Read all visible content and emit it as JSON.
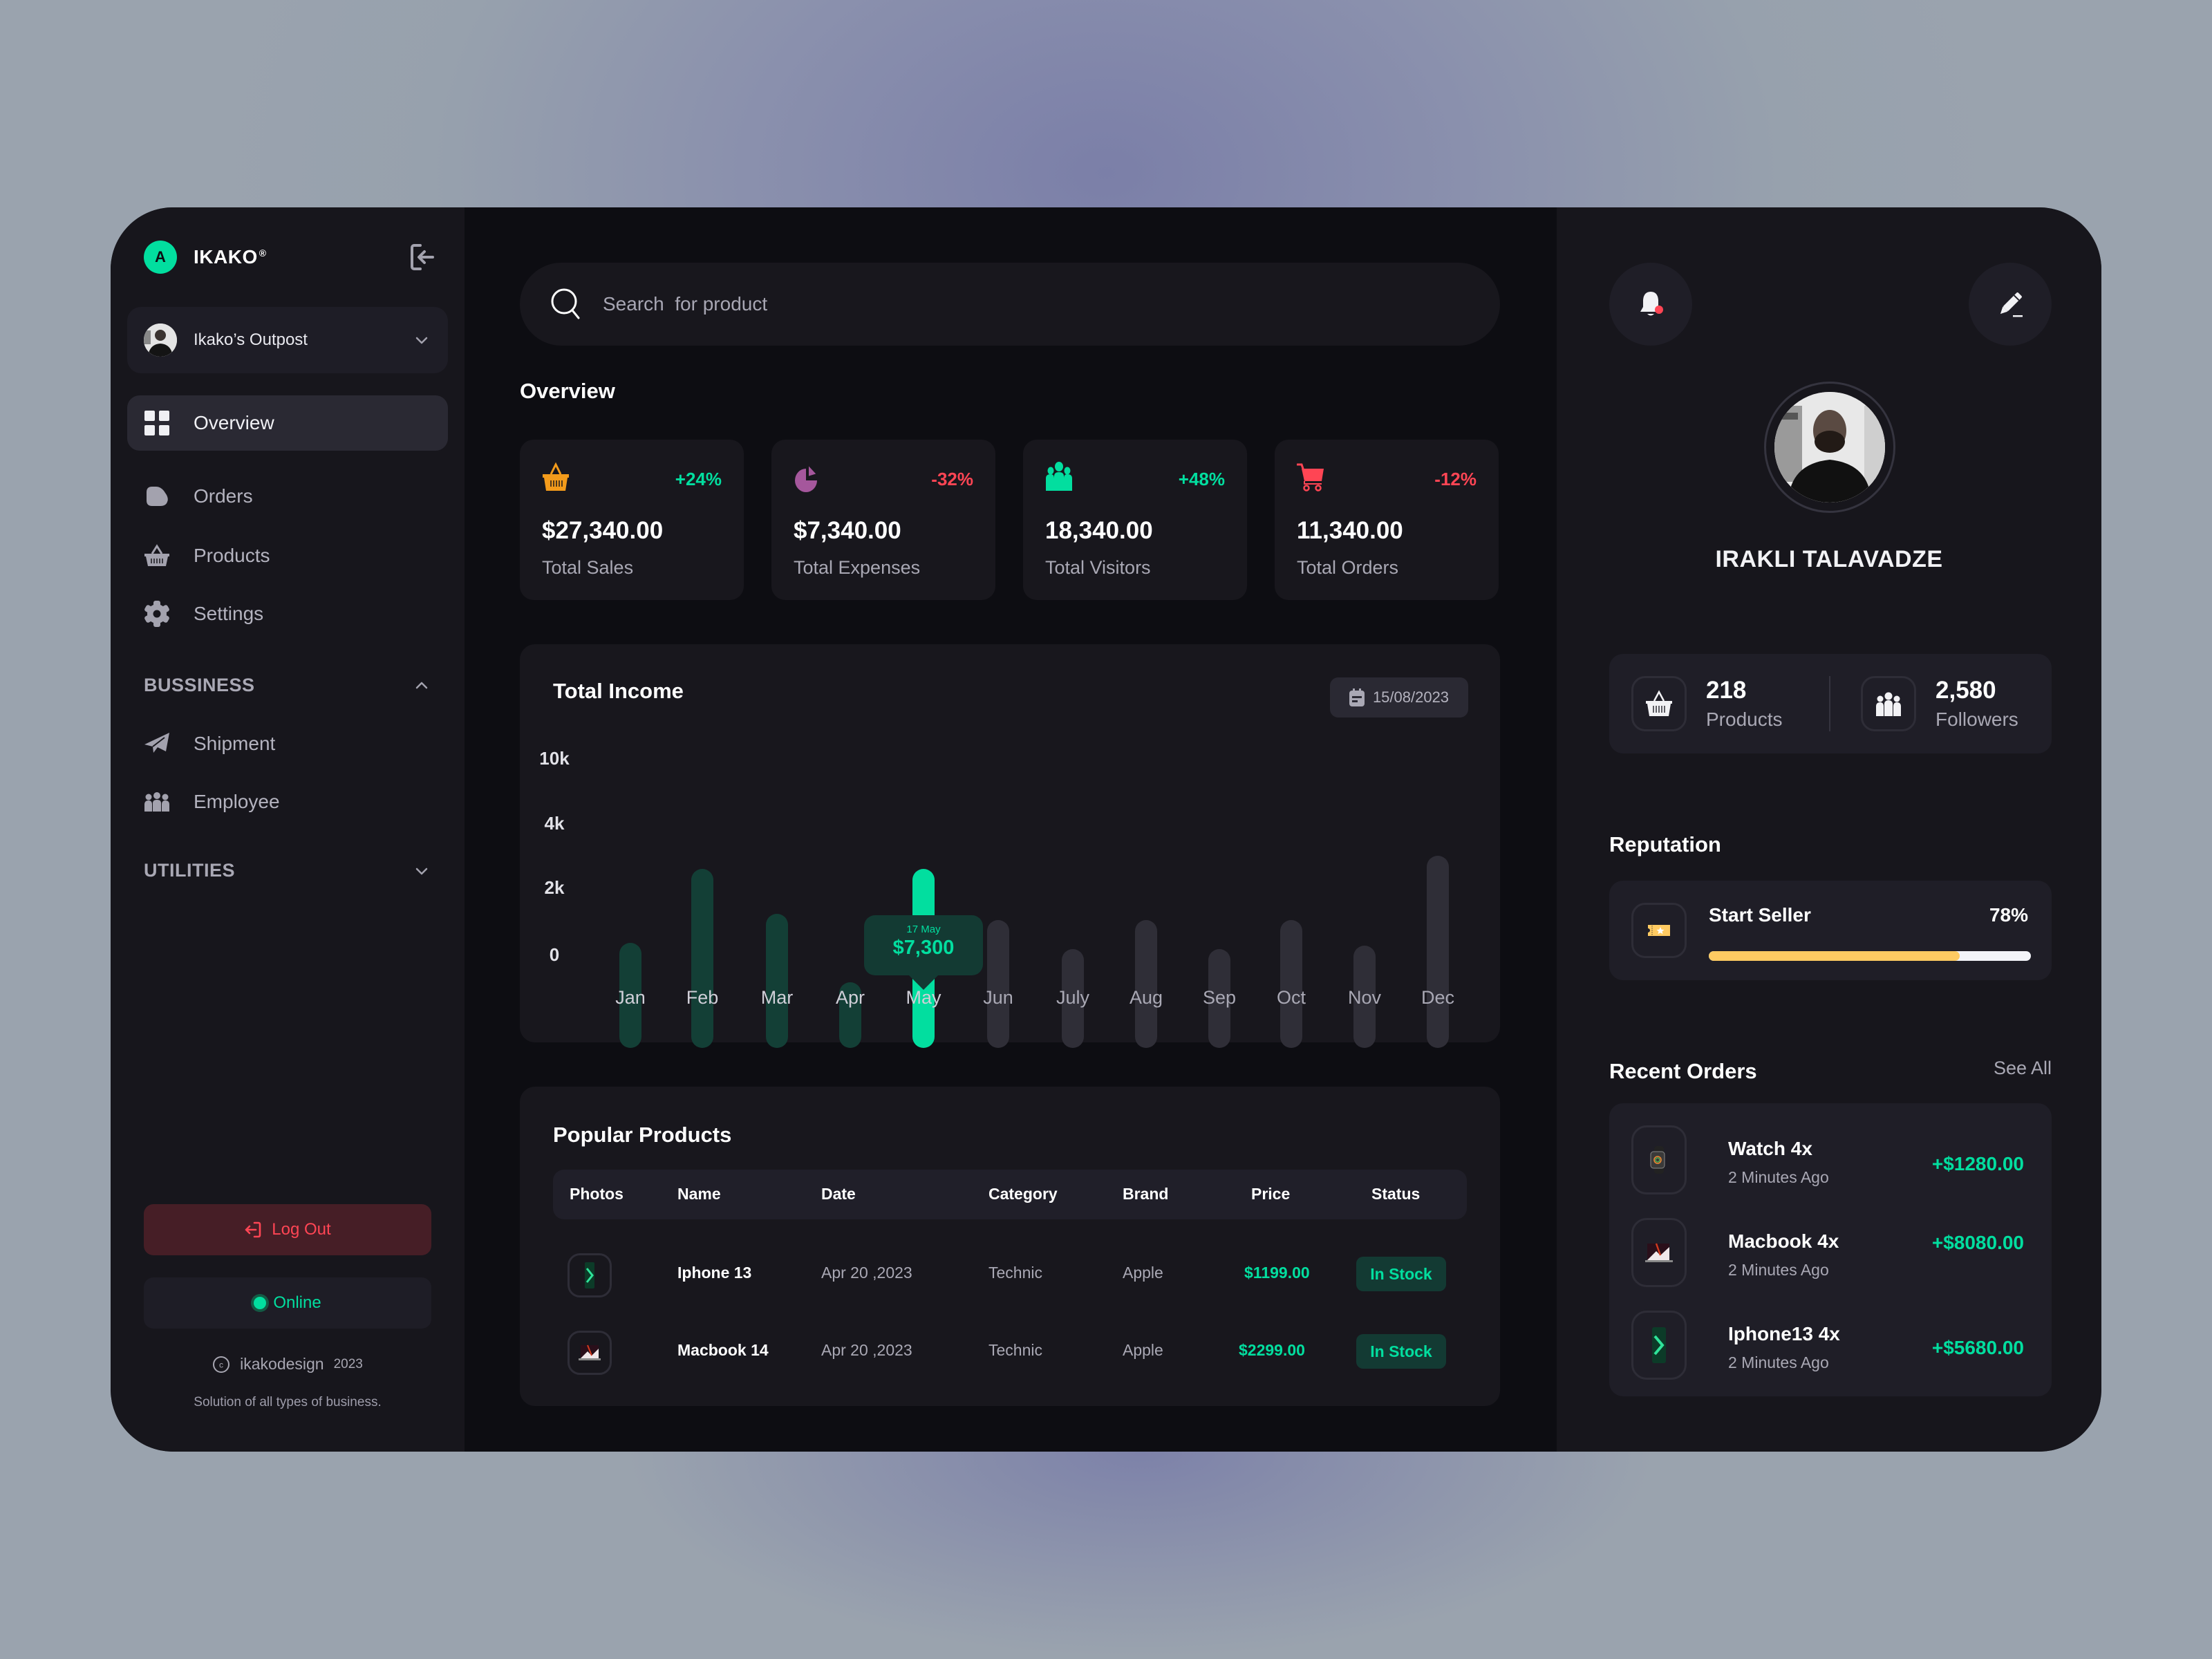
{
  "colors": {
    "accent": "#02de9f",
    "danger": "#ff4554",
    "warning": "#f39b1b",
    "purple": "#a5579c",
    "bar_active": "#02de9f",
    "bar_past": "#133f36",
    "bar_future": "#2f2e37",
    "reputation": "#ffcb62"
  },
  "sidebar": {
    "brand": {
      "logo_letter": "A",
      "name": "IKAKO",
      "reg": "®"
    },
    "collapse_icon": "sidebar-collapse-icon",
    "workspace": {
      "name": "Ikako’s Outpost"
    },
    "nav": [
      {
        "label": "Overview",
        "icon": "grid-icon",
        "active": true
      },
      {
        "label": "Orders",
        "icon": "pie-icon"
      },
      {
        "label": "Products",
        "icon": "basket-icon"
      },
      {
        "label": "Settings",
        "icon": "gear-icon"
      }
    ],
    "sections": [
      {
        "title": "BUSSINESS",
        "expanded": true,
        "items": [
          {
            "label": "Shipment",
            "icon": "paper-plane-icon"
          },
          {
            "label": "Employee",
            "icon": "people-icon"
          }
        ]
      },
      {
        "title": "UTILITIES",
        "expanded": false,
        "items": []
      }
    ],
    "logout_label": "Log Out",
    "status_label": "Online",
    "copyright": {
      "brand": "ikakodesign",
      "year": "2023"
    },
    "tagline": "Solution of all types of business."
  },
  "main": {
    "search": {
      "placeholder": "Search  for product"
    },
    "overview_title": "Overview",
    "stats": [
      {
        "value": "$27,340.00",
        "label": "Total Sales",
        "change": "+24%",
        "trend": "up",
        "icon": "basket-icon"
      },
      {
        "value": "$7,340.00",
        "label": "Total Expenses",
        "change": "-32%",
        "trend": "down",
        "icon": "pie-chart-icon"
      },
      {
        "value": "18,340.00",
        "label": "Total Visitors",
        "change": "+48%",
        "trend": "up",
        "icon": "people-icon"
      },
      {
        "value": "11,340.00",
        "label": "Total Orders",
        "change": "-12%",
        "trend": "down",
        "icon": "cart-icon"
      }
    ],
    "income": {
      "title": "Total Income",
      "date": "15/08/2023",
      "tooltip": {
        "date": "17 May",
        "value": "$7,300"
      }
    },
    "popular": {
      "title": "Popular Products",
      "columns": [
        "Photos",
        "Name",
        "Date",
        "Category",
        "Brand",
        "Price",
        "Status"
      ],
      "rows": [
        {
          "photo": "iphone-thumbnail",
          "name": "Iphone 13",
          "date": "Apr 20 ,2023",
          "category": "Technic",
          "brand": "Apple",
          "price": "$1199.00",
          "status": "In Stock"
        },
        {
          "photo": "macbook-thumbnail",
          "name": "Macbook 14",
          "date": "Apr 20 ,2023",
          "category": "Technic",
          "brand": "Apple",
          "price": "$2299.00",
          "status": "In Stock"
        }
      ]
    }
  },
  "chart_data": {
    "type": "bar",
    "title": "Total Income",
    "categories": [
      "Jan",
      "Feb",
      "Mar",
      "Apr",
      "May",
      "Jun",
      "July",
      "Aug",
      "Sep",
      "Oct",
      "Nov",
      "Dec"
    ],
    "values": [
      2800,
      7300,
      3700,
      1600,
      7300,
      3500,
      2600,
      3500,
      2600,
      3500,
      2700,
      8500
    ],
    "yticks": [
      "0",
      "2k",
      "4k",
      "10k"
    ],
    "xlabel": "",
    "ylabel": "",
    "highlighted": {
      "category": "May",
      "label": "17 May",
      "value": "$7,300"
    },
    "grid": false,
    "legend": null
  },
  "right": {
    "notification_icon": "bell-icon",
    "edit_icon": "pencil-icon",
    "profile": {
      "name": "IRAKLI TALAVADZE"
    },
    "stats": [
      {
        "value": "218",
        "label": "Products",
        "icon": "basket-icon"
      },
      {
        "value": "2,580",
        "label": "Followers",
        "icon": "people-icon"
      }
    ],
    "reputation": {
      "title": "Reputation",
      "level": "Start Seller",
      "percent": "78%",
      "percent_value": 78
    },
    "recent_orders": {
      "title": "Recent Orders",
      "see_all": "See All",
      "items": [
        {
          "name": "Watch 4x",
          "time": "2 Minutes Ago",
          "amount": "+$1280.00",
          "thumb": "watch-thumbnail"
        },
        {
          "name": "Macbook 4x",
          "time": "2 Minutes Ago",
          "amount": "+$8080.00",
          "thumb": "macbook-thumbnail"
        },
        {
          "name": "Iphone13 4x",
          "time": "2 Minutes Ago",
          "amount": "+$5680.00",
          "thumb": "iphone-thumbnail"
        }
      ]
    }
  }
}
